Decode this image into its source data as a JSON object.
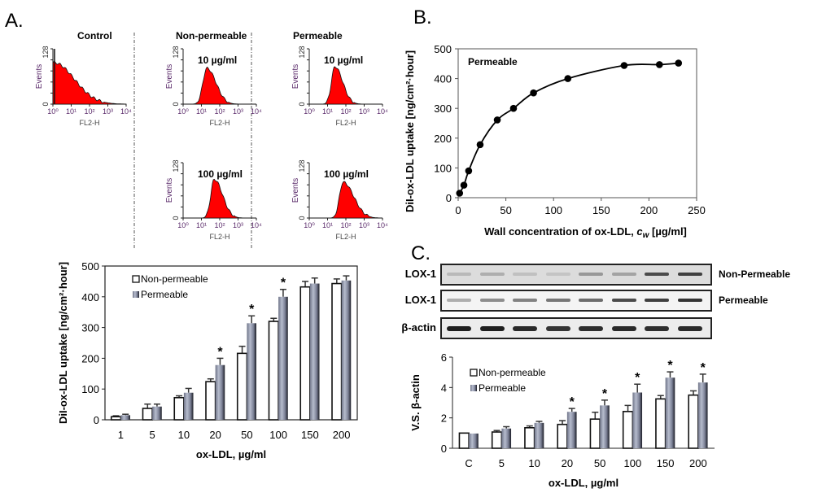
{
  "panels": {
    "A": "A.",
    "B": "B.",
    "C": "C."
  },
  "flow_cytometry": {
    "column_titles": [
      "Control",
      "Non-permeable",
      "Permeable"
    ],
    "y_label": "Events",
    "y_ticks": [
      "0",
      "128"
    ],
    "x_label": "FL2-H",
    "x_ticks": [
      "10⁰",
      "10¹",
      "10²",
      "10³",
      "10⁴"
    ],
    "fill_color": "#ff0000",
    "histograms": [
      {
        "id": "control",
        "column": 0,
        "row": 0,
        "label": "",
        "peak_log": 0.05,
        "width": 0.7,
        "height": 0.75,
        "skew": 1.6
      },
      {
        "id": "nonperm-10",
        "column": 1,
        "row": 0,
        "label": "10 µg/ml",
        "peak_log": 1.3,
        "width": 0.35,
        "height": 0.65,
        "skew": 1.4
      },
      {
        "id": "perm-10",
        "column": 2,
        "row": 0,
        "label": "10 µg/ml",
        "peak_log": 1.4,
        "width": 0.3,
        "height": 0.68,
        "skew": 1.4
      },
      {
        "id": "nonperm-100",
        "column": 1,
        "row": 1,
        "label": "100 µg/ml",
        "peak_log": 1.7,
        "width": 0.3,
        "height": 0.7,
        "skew": 1.5
      },
      {
        "id": "perm-100",
        "column": 2,
        "row": 1,
        "label": "100 µg/ml",
        "peak_log": 1.85,
        "width": 0.32,
        "height": 0.65,
        "skew": 1.8
      }
    ]
  },
  "chart_data": [
    {
      "id": "A-bar",
      "type": "bar",
      "title": "",
      "xlabel": "ox-LDL, µg/ml",
      "ylabel": "DiI-ox-LDL uptake  [ng/cm²·hour]",
      "categories": [
        "1",
        "5",
        "10",
        "20",
        "50",
        "100",
        "150",
        "200"
      ],
      "ylim": [
        0,
        500
      ],
      "yticks": [
        0,
        100,
        200,
        300,
        400,
        500
      ],
      "legend": "top-left",
      "series": [
        {
          "name": "Non-permeable",
          "values": [
            10,
            37,
            72,
            124,
            216,
            320,
            432,
            443
          ],
          "errors": [
            3,
            14,
            6,
            9,
            23,
            10,
            18,
            15
          ]
        },
        {
          "name": "Permeable",
          "values": [
            15,
            43,
            88,
            178,
            314,
            400,
            443,
            453
          ],
          "errors": [
            3,
            8,
            14,
            22,
            24,
            24,
            18,
            15
          ]
        }
      ],
      "significance": [
        "",
        "",
        "",
        "*",
        "*",
        "*",
        "",
        ""
      ]
    },
    {
      "id": "B-line",
      "type": "line",
      "title": "",
      "annotation": "Permeable",
      "xlabel": "Wall concentration of ox-LDL, c",
      "xlabel_sub": "w",
      "xlabel_unit": " [µg/ml]",
      "ylabel": "DiI-ox-LDL uptake  [ng/cm²·hour]",
      "xlim": [
        0,
        250
      ],
      "ylim": [
        0,
        500
      ],
      "xticks": [
        0,
        50,
        100,
        150,
        200,
        250
      ],
      "yticks": [
        0,
        100,
        200,
        300,
        400,
        500
      ],
      "x": [
        1.5,
        6,
        11,
        23,
        41,
        58,
        79,
        115,
        174,
        211,
        231
      ],
      "y": [
        15,
        42,
        90,
        178,
        261,
        300,
        352,
        400,
        444,
        447,
        452
      ]
    },
    {
      "id": "C-bar",
      "type": "bar",
      "title": "",
      "xlabel": "ox-LDL, µg/ml",
      "ylabel": "V.S. β-actin",
      "categories": [
        "C",
        "5",
        "10",
        "20",
        "50",
        "100",
        "150",
        "200"
      ],
      "ylim": [
        0,
        6
      ],
      "yticks": [
        0,
        2,
        4,
        6
      ],
      "legend": "top-left",
      "series": [
        {
          "name": "Non-permeable",
          "values": [
            1.0,
            1.07,
            1.35,
            1.57,
            1.92,
            2.42,
            3.25,
            3.5
          ],
          "errors": [
            0.0,
            0.1,
            0.12,
            0.25,
            0.45,
            0.4,
            0.22,
            0.28
          ]
        },
        {
          "name": "Permeable",
          "values": [
            0.97,
            1.3,
            1.67,
            2.4,
            2.82,
            3.67,
            4.65,
            4.33
          ],
          "errors": [
            0.0,
            0.12,
            0.1,
            0.22,
            0.35,
            0.55,
            0.38,
            0.55
          ]
        }
      ],
      "significance": [
        "",
        "",
        "",
        "*",
        "*",
        "*",
        "*",
        "*"
      ]
    }
  ],
  "western_blot": {
    "rows": [
      {
        "label": "LOX-1",
        "side_label": "Non-Permeable",
        "intensities": [
          0.25,
          0.3,
          0.22,
          0.2,
          0.4,
          0.35,
          0.75,
          0.8
        ]
      },
      {
        "label": "LOX-1",
        "side_label": "Permeable",
        "intensities": [
          0.3,
          0.45,
          0.5,
          0.55,
          0.6,
          0.75,
          0.8,
          0.85
        ]
      },
      {
        "label": "β-actin",
        "side_label": "",
        "intensities": [
          0.95,
          0.95,
          0.9,
          0.85,
          0.88,
          0.9,
          0.88,
          0.9
        ]
      }
    ]
  }
}
